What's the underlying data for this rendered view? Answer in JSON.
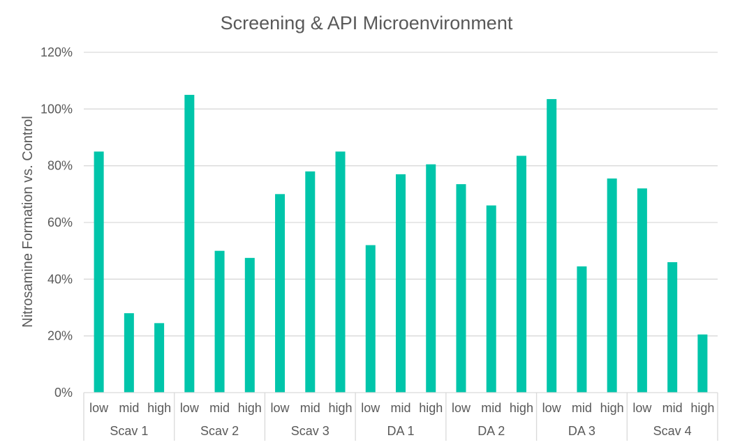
{
  "chart_data": {
    "type": "bar",
    "title": "Screening & API Microenvironment",
    "xlabel": "",
    "ylabel": "Nitrosamine Formation vs. Control",
    "ylim": [
      0,
      120
    ],
    "yticks": [
      "0%",
      "20%",
      "40%",
      "60%",
      "80%",
      "100%",
      "120%"
    ],
    "grid": true,
    "legend": "none",
    "bar_color": "#00C5AA",
    "groups": [
      {
        "name": "Scav 1",
        "levels": [
          "low",
          "mid",
          "high"
        ],
        "values": [
          85,
          28,
          24.5
        ]
      },
      {
        "name": "Scav 2",
        "levels": [
          "low",
          "mid",
          "high"
        ],
        "values": [
          105,
          50,
          47.5
        ]
      },
      {
        "name": "Scav 3",
        "levels": [
          "low",
          "mid",
          "high"
        ],
        "values": [
          70,
          78,
          85
        ]
      },
      {
        "name": "DA 1",
        "levels": [
          "low",
          "mid",
          "high"
        ],
        "values": [
          52,
          77,
          80.5
        ]
      },
      {
        "name": "DA 2",
        "levels": [
          "low",
          "mid",
          "high"
        ],
        "values": [
          73.5,
          66,
          83.5
        ]
      },
      {
        "name": "DA 3",
        "levels": [
          "low",
          "mid",
          "high"
        ],
        "values": [
          103.5,
          44.5,
          75.5
        ]
      },
      {
        "name": "Scav 4",
        "levels": [
          "low",
          "mid",
          "high"
        ],
        "values": [
          72,
          46,
          20.5
        ]
      }
    ]
  }
}
